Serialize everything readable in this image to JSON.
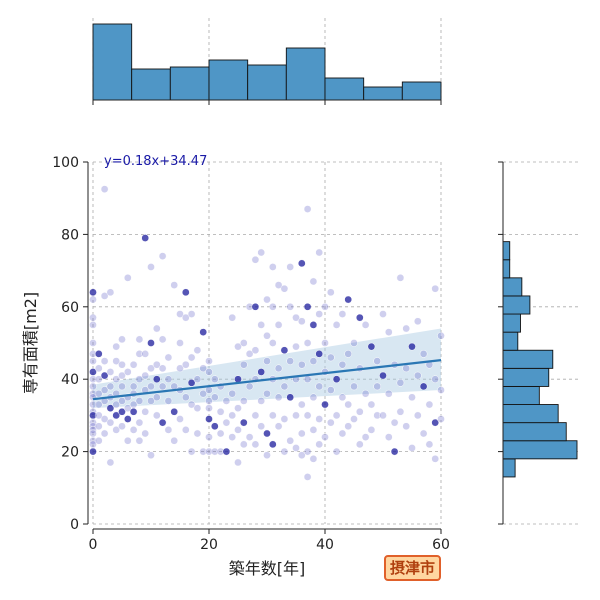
{
  "badge": "摂津市",
  "colors": {
    "bar": "#4f96c6",
    "bar_edge": "#111111",
    "point": "#6a6acb",
    "point_dark": "#1c1c9c",
    "reg_line": "#2a77b4",
    "ci_band": "#a9cae3",
    "grid": "#aaaaaa"
  },
  "chart_data": {
    "type": "scatter",
    "xlabel": "築年数[年]",
    "ylabel": "専有面積[m2]",
    "xlim": [
      0,
      60
    ],
    "ylim": [
      0,
      100
    ],
    "xticks": [
      0,
      20,
      40,
      60
    ],
    "yticks": [
      0,
      20,
      40,
      60,
      80,
      100
    ],
    "grid": true,
    "regression": {
      "label": "y=0.18x+34.47",
      "slope": 0.18,
      "intercept": 34.47,
      "ci_at_xmin": [
        32.0,
        38.5
      ],
      "ci_at_xmax": [
        37.0,
        54.0
      ]
    },
    "marginal_x": {
      "type": "histogram",
      "bin_edges": [
        0,
        6.67,
        13.33,
        20,
        26.67,
        33.33,
        40,
        46.67,
        53.33,
        60
      ],
      "counts": [
        76,
        31,
        33,
        40,
        35,
        52,
        22,
        13,
        18
      ]
    },
    "marginal_y": {
      "type": "histogram",
      "bin_edges": [
        13,
        18,
        23,
        28,
        33,
        38,
        43,
        48,
        53,
        58,
        63,
        68,
        73,
        78,
        83,
        88,
        93
      ],
      "counts": [
        9,
        55,
        47,
        41,
        27,
        34,
        37,
        11,
        13,
        20,
        14,
        5,
        5,
        0,
        0,
        0,
        1
      ]
    },
    "points": [
      [
        0,
        64
      ],
      [
        0,
        62
      ],
      [
        0,
        57
      ],
      [
        0,
        55
      ],
      [
        0,
        50
      ],
      [
        0,
        47
      ],
      [
        0,
        45
      ],
      [
        0,
        42
      ],
      [
        0,
        40
      ],
      [
        0,
        38
      ],
      [
        0,
        36
      ],
      [
        0,
        35
      ],
      [
        0,
        33
      ],
      [
        0,
        31
      ],
      [
        0,
        30
      ],
      [
        0,
        28
      ],
      [
        0,
        27
      ],
      [
        0,
        26
      ],
      [
        0,
        25
      ],
      [
        0,
        23
      ],
      [
        0,
        22
      ],
      [
        0,
        20
      ],
      [
        1,
        30
      ],
      [
        1,
        33
      ],
      [
        1,
        36
      ],
      [
        1,
        40
      ],
      [
        1,
        43
      ],
      [
        1,
        27
      ],
      [
        1,
        47
      ],
      [
        1,
        23
      ],
      [
        2,
        92.5
      ],
      [
        2,
        63
      ],
      [
        2,
        37
      ],
      [
        2,
        34
      ],
      [
        2,
        29
      ],
      [
        2,
        41
      ],
      [
        2,
        25
      ],
      [
        2,
        45
      ],
      [
        3,
        64
      ],
      [
        3,
        38
      ],
      [
        3,
        35
      ],
      [
        3,
        17
      ],
      [
        3,
        32
      ],
      [
        3,
        42
      ],
      [
        3,
        28
      ],
      [
        4,
        45
      ],
      [
        4,
        40
      ],
      [
        4,
        36
      ],
      [
        4,
        33
      ],
      [
        4,
        30
      ],
      [
        4,
        26
      ],
      [
        4,
        49
      ],
      [
        5,
        51
      ],
      [
        5,
        44
      ],
      [
        5,
        38
      ],
      [
        5,
        34
      ],
      [
        5,
        31
      ],
      [
        5,
        27
      ],
      [
        5,
        41
      ],
      [
        6,
        68
      ],
      [
        6,
        42
      ],
      [
        6,
        35
      ],
      [
        6,
        32
      ],
      [
        6,
        29
      ],
      [
        6,
        23
      ],
      [
        7,
        44
      ],
      [
        7,
        38
      ],
      [
        7,
        36
      ],
      [
        7,
        33
      ],
      [
        7,
        26
      ],
      [
        7,
        31
      ],
      [
        8,
        51
      ],
      [
        8,
        47
      ],
      [
        8,
        40
      ],
      [
        8,
        34
      ],
      [
        8,
        28
      ],
      [
        8,
        23
      ],
      [
        9,
        79
      ],
      [
        9,
        47
      ],
      [
        9,
        41
      ],
      [
        9,
        37
      ],
      [
        9,
        31
      ],
      [
        9,
        25
      ],
      [
        10,
        71
      ],
      [
        10,
        50
      ],
      [
        10,
        43
      ],
      [
        10,
        38
      ],
      [
        10,
        34
      ],
      [
        10,
        19
      ],
      [
        11,
        54
      ],
      [
        11,
        44
      ],
      [
        11,
        40
      ],
      [
        11,
        35
      ],
      [
        11,
        30
      ],
      [
        12,
        74
      ],
      [
        12,
        51
      ],
      [
        12,
        43
      ],
      [
        12,
        38
      ],
      [
        12,
        28
      ],
      [
        13,
        46
      ],
      [
        13,
        40
      ],
      [
        13,
        34
      ],
      [
        13,
        26
      ],
      [
        14,
        66
      ],
      [
        14,
        38
      ],
      [
        14,
        31
      ],
      [
        14,
        23
      ],
      [
        15,
        58
      ],
      [
        15,
        50
      ],
      [
        15,
        43
      ],
      [
        15,
        37
      ],
      [
        15,
        29
      ],
      [
        16,
        64
      ],
      [
        16,
        57
      ],
      [
        16,
        44
      ],
      [
        16,
        35
      ],
      [
        16,
        26
      ],
      [
        17,
        58
      ],
      [
        17,
        46
      ],
      [
        17,
        39
      ],
      [
        17,
        33
      ],
      [
        17,
        20
      ],
      [
        18,
        48
      ],
      [
        18,
        40
      ],
      [
        18,
        32
      ],
      [
        18,
        25
      ],
      [
        19,
        53
      ],
      [
        19,
        43
      ],
      [
        19,
        36
      ],
      [
        19,
        20
      ],
      [
        20,
        45
      ],
      [
        20,
        37
      ],
      [
        20,
        32
      ],
      [
        20,
        29
      ],
      [
        20,
        24
      ],
      [
        20,
        20
      ],
      [
        20,
        42
      ],
      [
        20,
        34
      ],
      [
        21,
        40
      ],
      [
        21,
        35
      ],
      [
        21,
        27
      ],
      [
        21,
        20
      ],
      [
        22,
        38
      ],
      [
        22,
        31
      ],
      [
        22,
        25
      ],
      [
        22,
        20
      ],
      [
        23,
        34
      ],
      [
        23,
        20
      ],
      [
        23,
        28
      ],
      [
        24,
        57
      ],
      [
        24,
        36
      ],
      [
        24,
        30
      ],
      [
        24,
        24
      ],
      [
        25,
        49
      ],
      [
        25,
        40
      ],
      [
        25,
        32
      ],
      [
        25,
        26
      ],
      [
        25,
        17
      ],
      [
        26,
        50
      ],
      [
        26,
        44
      ],
      [
        26,
        34
      ],
      [
        26,
        28
      ],
      [
        26,
        22
      ],
      [
        27,
        60
      ],
      [
        27,
        47
      ],
      [
        27,
        38
      ],
      [
        27,
        24
      ],
      [
        28,
        73
      ],
      [
        28,
        60
      ],
      [
        28,
        48
      ],
      [
        28,
        40
      ],
      [
        28,
        30
      ],
      [
        28,
        22
      ],
      [
        29,
        75
      ],
      [
        29,
        55
      ],
      [
        29,
        42
      ],
      [
        29,
        34
      ],
      [
        29,
        27
      ],
      [
        30,
        62
      ],
      [
        30,
        52
      ],
      [
        30,
        45
      ],
      [
        30,
        36
      ],
      [
        30,
        25
      ],
      [
        30,
        19
      ],
      [
        31,
        71
      ],
      [
        31,
        60
      ],
      [
        31,
        50
      ],
      [
        31,
        40
      ],
      [
        31,
        30
      ],
      [
        31,
        22
      ],
      [
        32,
        66
      ],
      [
        32,
        55
      ],
      [
        32,
        43
      ],
      [
        32,
        35
      ],
      [
        32,
        27
      ],
      [
        33,
        65
      ],
      [
        33,
        48
      ],
      [
        33,
        38
      ],
      [
        33,
        29
      ],
      [
        33,
        20
      ],
      [
        34,
        71
      ],
      [
        34,
        60
      ],
      [
        34,
        45
      ],
      [
        34,
        35
      ],
      [
        34,
        23
      ],
      [
        35,
        57
      ],
      [
        35,
        49
      ],
      [
        35,
        40
      ],
      [
        35,
        30
      ],
      [
        35,
        21
      ],
      [
        36,
        72
      ],
      [
        36,
        56
      ],
      [
        36,
        44
      ],
      [
        36,
        33
      ],
      [
        36,
        25
      ],
      [
        36,
        19
      ],
      [
        37,
        87
      ],
      [
        37,
        60
      ],
      [
        37,
        50
      ],
      [
        37,
        40
      ],
      [
        37,
        30
      ],
      [
        37,
        20
      ],
      [
        37,
        13
      ],
      [
        38,
        67
      ],
      [
        38,
        55
      ],
      [
        38,
        45
      ],
      [
        38,
        35
      ],
      [
        38,
        26
      ],
      [
        38,
        18
      ],
      [
        39,
        75
      ],
      [
        39,
        58
      ],
      [
        39,
        47
      ],
      [
        39,
        38
      ],
      [
        39,
        29
      ],
      [
        39,
        22
      ],
      [
        40,
        60
      ],
      [
        40,
        50
      ],
      [
        40,
        42
      ],
      [
        40,
        33
      ],
      [
        40,
        24
      ],
      [
        41,
        64
      ],
      [
        41,
        46
      ],
      [
        41,
        37
      ],
      [
        41,
        28
      ],
      [
        42,
        55
      ],
      [
        42,
        40
      ],
      [
        42,
        30
      ],
      [
        42,
        20
      ],
      [
        43,
        58
      ],
      [
        43,
        44
      ],
      [
        43,
        35
      ],
      [
        43,
        25
      ],
      [
        44,
        62
      ],
      [
        44,
        47
      ],
      [
        44,
        33
      ],
      [
        44,
        27
      ],
      [
        45,
        50
      ],
      [
        45,
        38
      ],
      [
        45,
        29
      ],
      [
        46,
        57
      ],
      [
        46,
        43
      ],
      [
        46,
        31
      ],
      [
        46,
        22
      ],
      [
        47,
        55
      ],
      [
        47,
        36
      ],
      [
        47,
        24
      ],
      [
        48,
        49
      ],
      [
        48,
        33
      ],
      [
        48,
        26
      ],
      [
        49,
        45
      ],
      [
        49,
        38
      ],
      [
        49,
        30
      ],
      [
        50,
        58
      ],
      [
        50,
        41
      ],
      [
        50,
        30
      ],
      [
        51,
        53
      ],
      [
        51,
        36
      ],
      [
        51,
        24
      ],
      [
        52,
        44
      ],
      [
        52,
        28
      ],
      [
        52,
        20
      ],
      [
        53,
        68
      ],
      [
        53,
        39
      ],
      [
        53,
        31
      ],
      [
        54,
        54
      ],
      [
        54,
        43
      ],
      [
        54,
        27
      ],
      [
        55,
        49
      ],
      [
        55,
        35
      ],
      [
        55,
        21
      ],
      [
        56,
        56
      ],
      [
        56,
        41
      ],
      [
        56,
        30
      ],
      [
        57,
        47
      ],
      [
        57,
        38
      ],
      [
        57,
        25
      ],
      [
        58,
        44
      ],
      [
        58,
        33
      ],
      [
        58,
        22
      ],
      [
        59,
        65
      ],
      [
        59,
        40
      ],
      [
        59,
        28
      ],
      [
        59,
        18
      ],
      [
        60,
        52
      ],
      [
        60,
        37
      ],
      [
        60,
        29
      ]
    ]
  }
}
